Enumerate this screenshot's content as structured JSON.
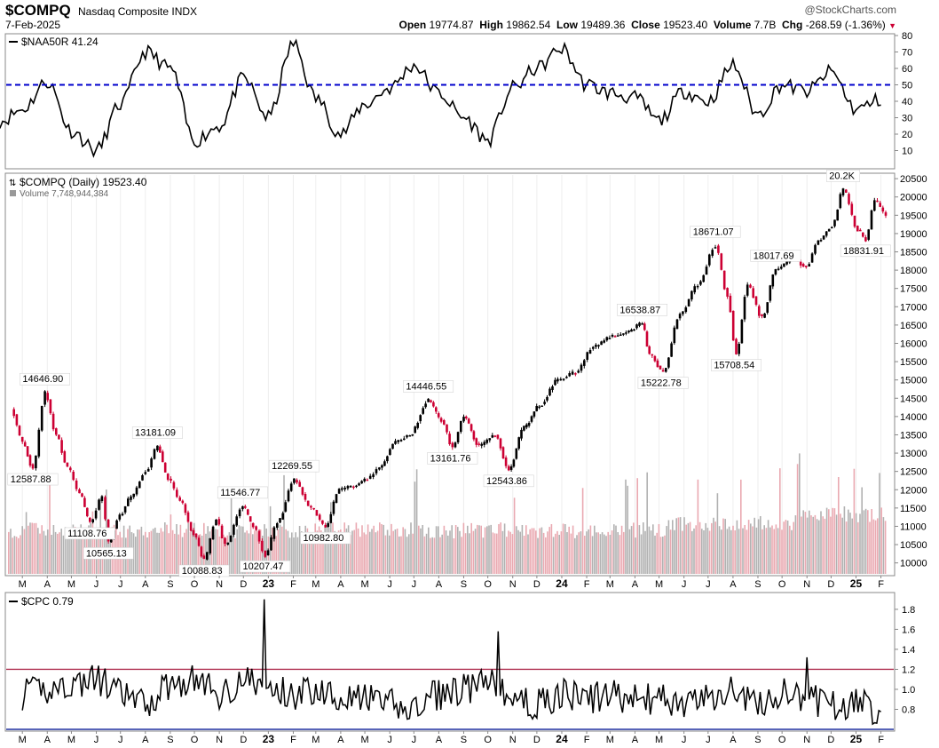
{
  "header": {
    "symbol": "$COMPQ",
    "name": "Nasdaq Composite INDX",
    "date": "7-Feb-2025",
    "brand": "@StockCharts.com",
    "open_label": "Open",
    "open": "19774.87",
    "high_label": "High",
    "high": "19862.54",
    "low_label": "Low",
    "low": "19489.36",
    "close_label": "Close",
    "close": "19523.40",
    "volume_label": "Volume",
    "volume": "7.7B",
    "chg_label": "Chg",
    "chg": "-268.59 (-1.36%)"
  },
  "chart_data": [
    {
      "type": "line",
      "panel": "indicator-top",
      "legend": "$NAA50R 41.24",
      "ylim": [
        0,
        80
      ],
      "yticks": [
        10,
        20,
        30,
        40,
        50,
        60,
        70,
        80
      ],
      "reference_line": {
        "value": 50,
        "color": "#0000cc",
        "style": "dashed"
      },
      "x": [
        "2022-02",
        "2022-03",
        "2022-04",
        "2022-05",
        "2022-06",
        "2022-07",
        "2022-08",
        "2022-09",
        "2022-10",
        "2022-11",
        "2022-12",
        "2023-01",
        "2023-02",
        "2023-03",
        "2023-04",
        "2023-05",
        "2023-06",
        "2023-07",
        "2023-08",
        "2023-09",
        "2023-10",
        "2023-11",
        "2023-12",
        "2024-01",
        "2024-02",
        "2024-03",
        "2024-04",
        "2024-05",
        "2024-06",
        "2024-07",
        "2024-08",
        "2024-09",
        "2024-10",
        "2024-11",
        "2024-12",
        "2025-01",
        "2025-02"
      ],
      "values": [
        28,
        35,
        52,
        22,
        10,
        38,
        70,
        60,
        16,
        25,
        54,
        30,
        75,
        42,
        20,
        38,
        48,
        62,
        45,
        30,
        16,
        48,
        60,
        72,
        50,
        45,
        42,
        28,
        46,
        40,
        62,
        32,
        50,
        46,
        58,
        35,
        41
      ]
    },
    {
      "type": "candlestick",
      "panel": "price",
      "legend": "$COMPQ (Daily) 19523.40",
      "volume_legend": "Volume 7,748,944,384",
      "ylim": [
        9700,
        20600
      ],
      "yticks": [
        10000,
        10500,
        11000,
        11500,
        12000,
        12500,
        13000,
        13500,
        14000,
        14500,
        15000,
        15500,
        16000,
        16500,
        17000,
        17500,
        18000,
        18500,
        19000,
        19500,
        20000,
        20500
      ],
      "x": [
        "2022-02-15",
        "2022-03-01",
        "2022-03-14",
        "2022-03-29",
        "2022-04-12",
        "2022-04-26",
        "2022-05-11",
        "2022-05-24",
        "2022-06-08",
        "2022-06-16",
        "2022-06-30",
        "2022-07-14",
        "2022-08-01",
        "2022-08-16",
        "2022-08-29",
        "2022-09-13",
        "2022-09-30",
        "2022-10-13",
        "2022-10-28",
        "2022-11-08",
        "2022-11-30",
        "2022-12-13",
        "2022-12-28",
        "2023-01-12",
        "2023-02-02",
        "2023-02-23",
        "2023-03-13",
        "2023-03-30",
        "2023-04-17",
        "2023-05-04",
        "2023-05-19",
        "2023-06-08",
        "2023-06-26",
        "2023-07-19",
        "2023-08-04",
        "2023-08-18",
        "2023-09-01",
        "2023-09-20",
        "2023-10-10",
        "2023-10-27",
        "2023-11-15",
        "2023-12-04",
        "2023-12-27",
        "2024-01-18",
        "2024-02-09",
        "2024-03-04",
        "2024-03-21",
        "2024-04-10",
        "2024-04-19",
        "2024-05-06",
        "2024-05-27",
        "2024-06-18",
        "2024-07-10",
        "2024-07-25",
        "2024-08-05",
        "2024-08-19",
        "2024-09-06",
        "2024-09-23",
        "2024-10-14",
        "2024-10-31",
        "2024-11-15",
        "2024-12-02",
        "2024-12-16",
        "2025-01-03",
        "2025-01-13",
        "2025-01-24",
        "2025-02-07"
      ],
      "values": [
        14200,
        13300,
        12587.88,
        14646.9,
        13500,
        12600,
        11900,
        11108.76,
        11800,
        10565.13,
        11300,
        11800,
        12500,
        13181.09,
        12300,
        11700,
        10800,
        10088.83,
        11200,
        10500,
        11546.77,
        11000,
        10207.47,
        11100,
        12269.55,
        11500,
        10982.8,
        12000,
        12100,
        12300,
        12600,
        13300,
        13500,
        14446.55,
        13900,
        13161.76,
        14000,
        13200,
        13500,
        12543.86,
        13700,
        14300,
        15000,
        15200,
        15900,
        16200,
        16300,
        16538.87,
        15700,
        15222.78,
        16800,
        17600,
        18671.07,
        17300,
        15708.54,
        17600,
        16700,
        18017.69,
        18300,
        18100,
        18800,
        19200,
        20200,
        19100,
        18831.91,
        19900,
        19523.4
      ],
      "annotations": [
        {
          "x": "2022-03-29",
          "value": 14646.9,
          "label": "14646.90",
          "pos": "above"
        },
        {
          "x": "2022-03-14",
          "value": 12587.88,
          "label": "12587.88",
          "pos": "below"
        },
        {
          "x": "2022-08-16",
          "value": 13181.09,
          "label": "13181.09",
          "pos": "above"
        },
        {
          "x": "2022-05-24",
          "value": 11108.76,
          "label": "11108.76",
          "pos": "below"
        },
        {
          "x": "2022-06-16",
          "value": 10565.13,
          "label": "10565.13",
          "pos": "below"
        },
        {
          "x": "2022-10-13",
          "value": 10088.83,
          "label": "10088.83",
          "pos": "below"
        },
        {
          "x": "2022-11-30",
          "value": 11546.77,
          "label": "11546.77",
          "pos": "above"
        },
        {
          "x": "2022-12-28",
          "value": 10207.47,
          "label": "10207.47",
          "pos": "below"
        },
        {
          "x": "2023-02-02",
          "value": 12269.55,
          "label": "12269.55",
          "pos": "above"
        },
        {
          "x": "2023-03-13",
          "value": 10982.8,
          "label": "10982.80",
          "pos": "below"
        },
        {
          "x": "2023-07-19",
          "value": 14446.55,
          "label": "14446.55",
          "pos": "above"
        },
        {
          "x": "2023-08-18",
          "value": 13161.76,
          "label": "13161.76",
          "pos": "below"
        },
        {
          "x": "2023-10-27",
          "value": 12543.86,
          "label": "12543.86",
          "pos": "below"
        },
        {
          "x": "2024-04-10",
          "value": 16538.87,
          "label": "16538.87",
          "pos": "above"
        },
        {
          "x": "2024-05-06",
          "value": 15222.78,
          "label": "15222.78",
          "pos": "below"
        },
        {
          "x": "2024-07-10",
          "value": 18671.07,
          "label": "18671.07",
          "pos": "above"
        },
        {
          "x": "2024-08-05",
          "value": 15708.54,
          "label": "15708.54",
          "pos": "below"
        },
        {
          "x": "2024-09-23",
          "value": 18017.69,
          "label": "18017.69",
          "pos": "above"
        },
        {
          "x": "2024-12-16",
          "value": 20200,
          "label": "20.2K",
          "pos": "above"
        },
        {
          "x": "2025-01-13",
          "value": 18831.91,
          "label": "18831.91",
          "pos": "below"
        }
      ],
      "up_color": "#000000",
      "down_color": "#cc0033"
    },
    {
      "type": "line",
      "panel": "indicator-bottom",
      "legend": "$CPC 0.79",
      "ylim": [
        0.6,
        1.95
      ],
      "yticks": [
        0.8,
        1.0,
        1.2,
        1.4,
        1.6,
        1.8
      ],
      "reference_lines": [
        {
          "value": 1.2,
          "color": "#b03050"
        },
        {
          "value": 0.6,
          "color": "#2030a0"
        }
      ],
      "x": [
        "2022-03",
        "2022-04",
        "2022-05",
        "2022-06",
        "2022-07",
        "2022-08",
        "2022-09",
        "2022-10",
        "2022-11",
        "2022-12",
        "2023-01",
        "2023-02",
        "2023-03",
        "2023-04",
        "2023-05",
        "2023-06",
        "2023-07",
        "2023-08",
        "2023-09",
        "2023-10",
        "2023-11",
        "2023-12",
        "2024-01",
        "2024-02",
        "2024-03",
        "2024-04",
        "2024-05",
        "2024-06",
        "2024-07",
        "2024-08",
        "2024-09",
        "2024-10",
        "2024-11",
        "2024-12",
        "2025-01",
        "2025-02"
      ],
      "values": [
        0.95,
        1.0,
        1.05,
        1.1,
        0.95,
        0.85,
        1.05,
        1.1,
        0.95,
        1.1,
        1.0,
        0.95,
        1.0,
        0.95,
        0.9,
        0.85,
        0.8,
        0.95,
        1.0,
        1.05,
        0.9,
        0.85,
        0.95,
        0.9,
        0.95,
        0.9,
        0.9,
        0.85,
        0.9,
        1.0,
        0.85,
        0.95,
        0.9,
        0.85,
        0.85,
        0.79
      ],
      "spikes": [
        {
          "x": "2022-12-28",
          "value": 1.9
        },
        {
          "x": "2023-10-13",
          "value": 1.58
        },
        {
          "x": "2024-10-31",
          "value": 1.32
        }
      ]
    }
  ],
  "x_axis": {
    "months": [
      "M",
      "A",
      "M",
      "J",
      "J",
      "A",
      "S",
      "O",
      "N",
      "D",
      "23",
      "F",
      "M",
      "A",
      "M",
      "J",
      "J",
      "A",
      "S",
      "O",
      "N",
      "D",
      "24",
      "F",
      "M",
      "A",
      "M",
      "J",
      "J",
      "A",
      "S",
      "O",
      "N",
      "D",
      "25",
      "F"
    ],
    "month_dates": [
      "2022-03",
      "2022-04",
      "2022-05",
      "2022-06",
      "2022-07",
      "2022-08",
      "2022-09",
      "2022-10",
      "2022-11",
      "2022-12",
      "2023-01",
      "2023-02",
      "2023-03",
      "2023-04",
      "2023-05",
      "2023-06",
      "2023-07",
      "2023-08",
      "2023-09",
      "2023-10",
      "2023-11",
      "2023-12",
      "2024-01",
      "2024-02",
      "2024-03",
      "2024-04",
      "2024-05",
      "2024-06",
      "2024-07",
      "2024-08",
      "2024-09",
      "2024-10",
      "2024-11",
      "2024-12",
      "2025-01",
      "2025-02"
    ],
    "start": "2022-02-10",
    "end": "2025-02-07"
  }
}
